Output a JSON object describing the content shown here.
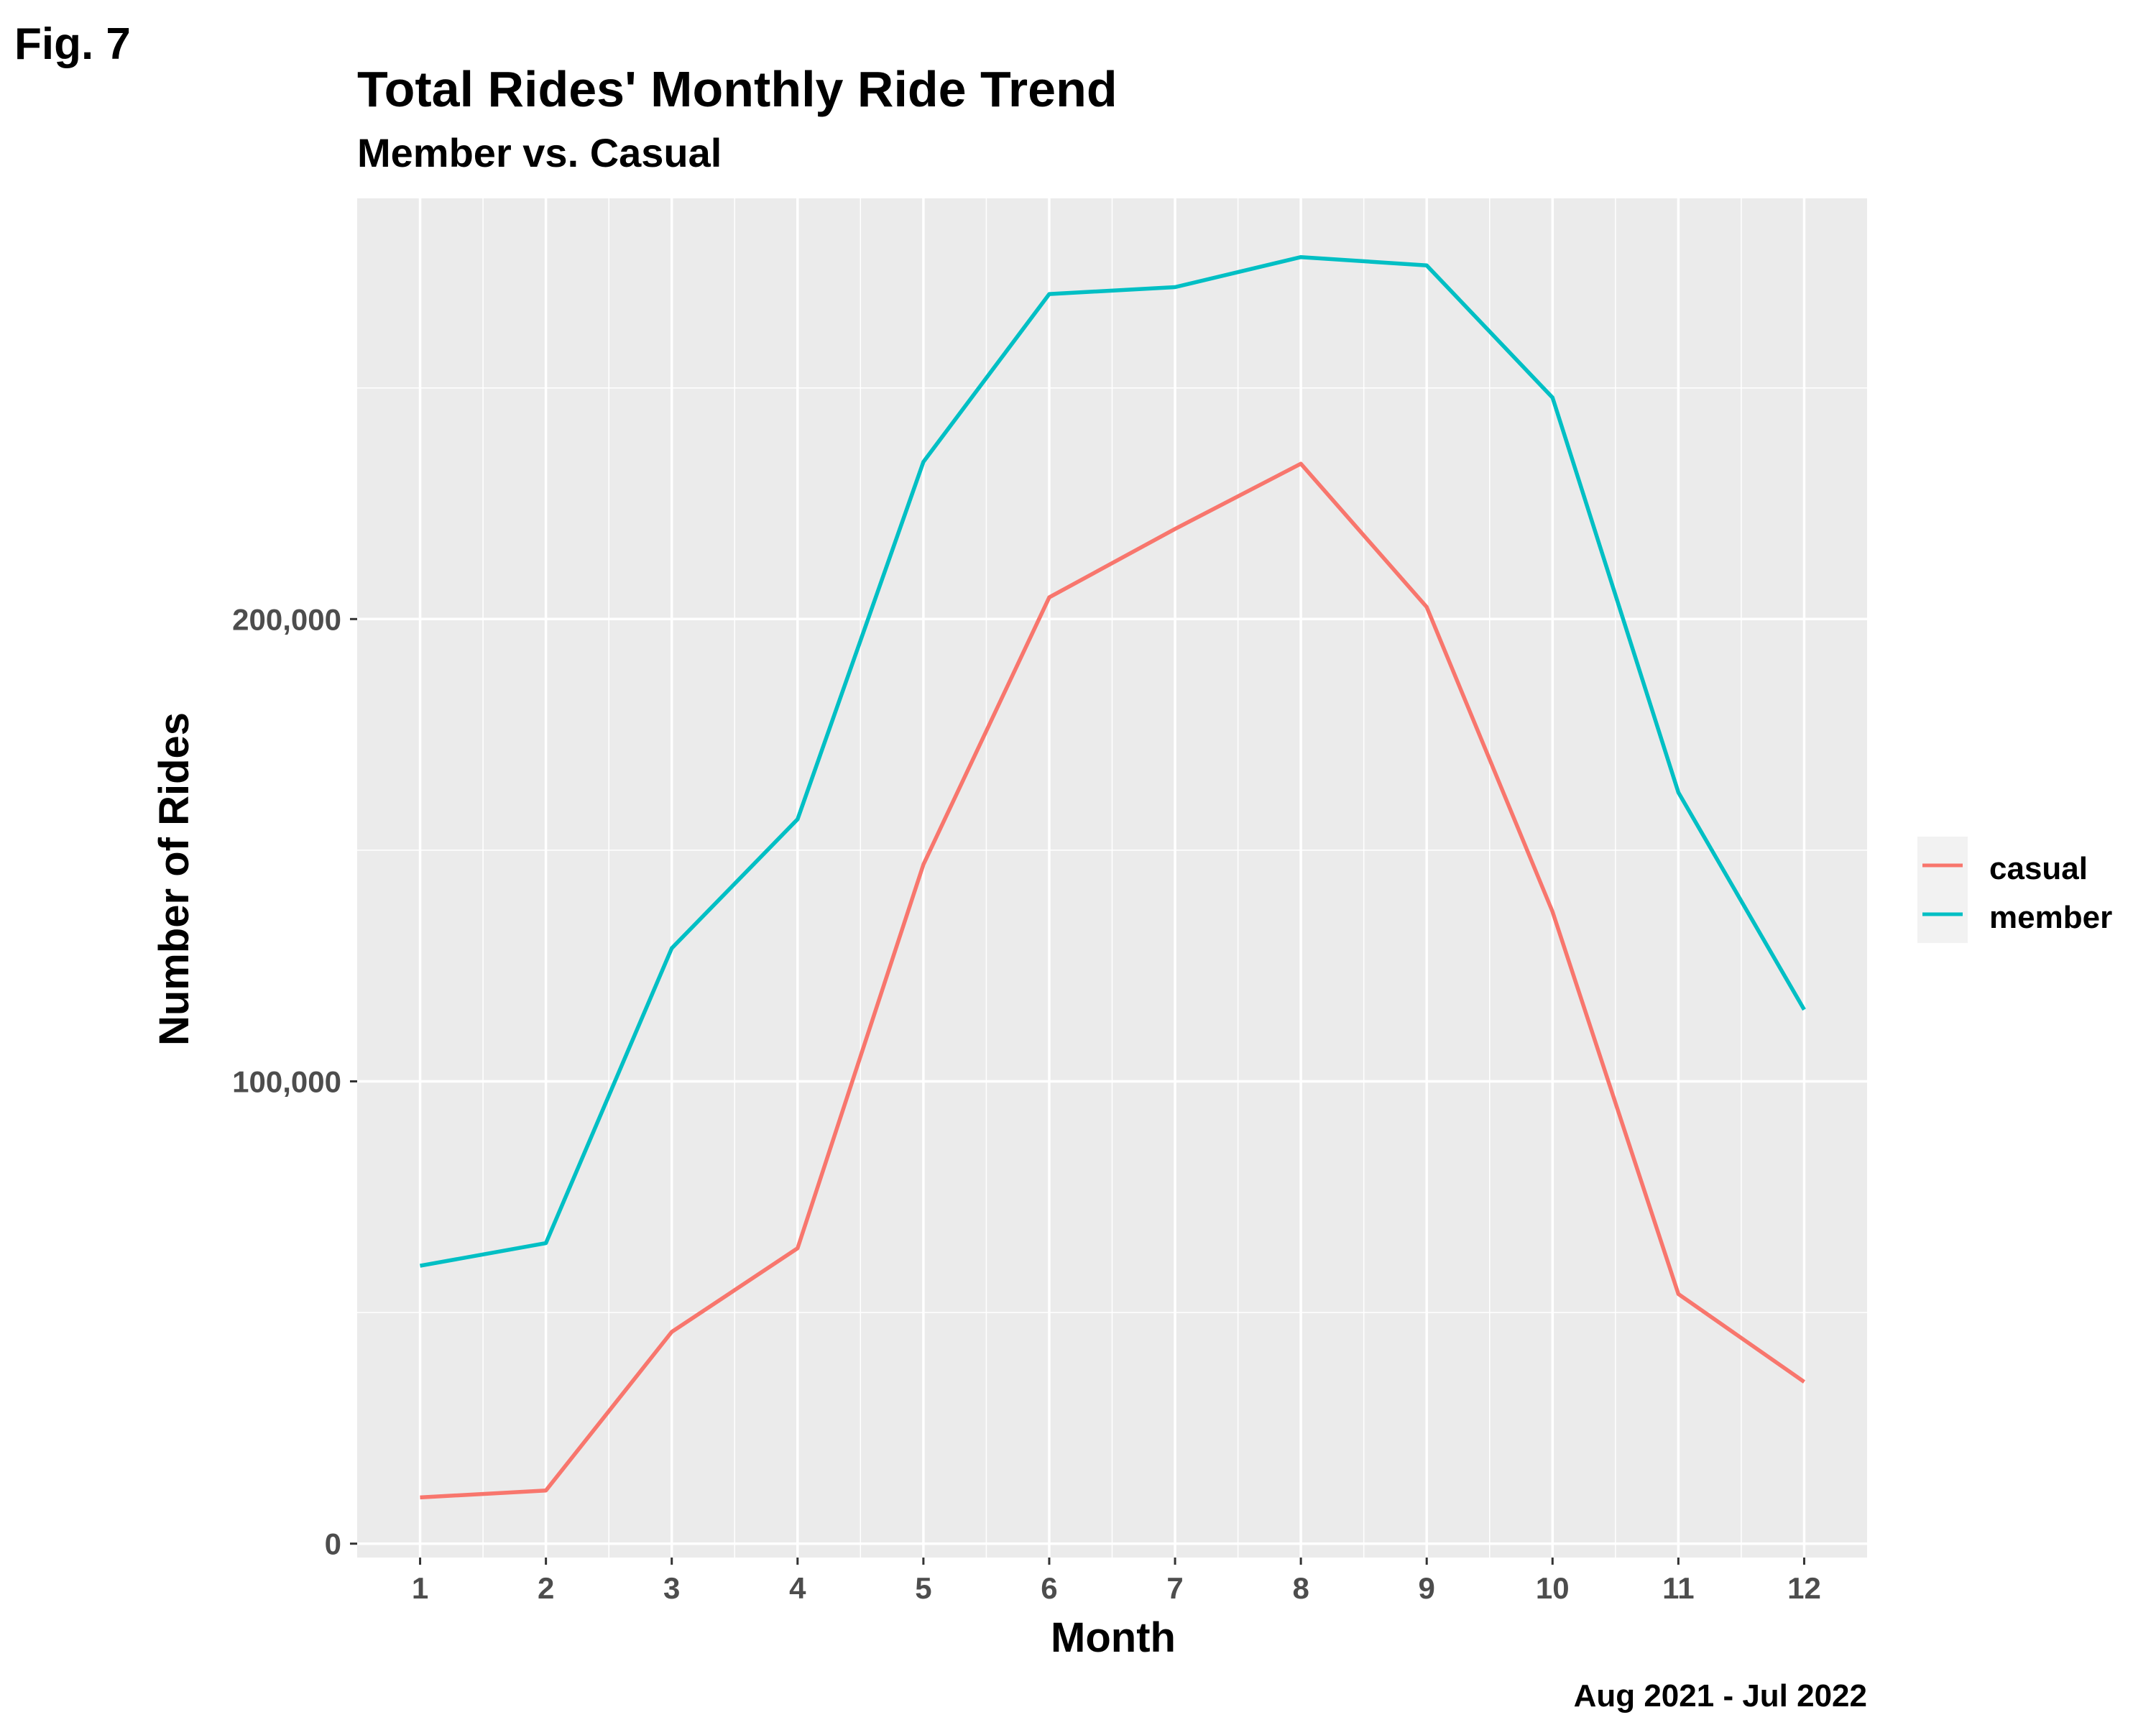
{
  "figure_label": "Fig. 7",
  "caption": "Aug 2021 - Jul 2022",
  "chart_data": {
    "type": "line",
    "title": "Total Rides' Monthly Ride Trend",
    "subtitle": "Member vs. Casual",
    "xlabel": "Month",
    "ylabel": "Number of Rides",
    "x": [
      1,
      2,
      3,
      4,
      5,
      6,
      7,
      8,
      9,
      10,
      11,
      12
    ],
    "x_tick_labels": [
      "1",
      "2",
      "3",
      "4",
      "5",
      "6",
      "7",
      "8",
      "9",
      "10",
      "11",
      "12"
    ],
    "xlim": [
      0.5,
      12.5
    ],
    "ylim": [
      -3000,
      291000
    ],
    "y_ticks": [
      0,
      100000,
      200000
    ],
    "y_tick_labels": [
      "0",
      "100,000",
      "200,000"
    ],
    "grid": true,
    "legend_position": "right",
    "series": [
      {
        "name": "casual",
        "color": "#F8766D",
        "values": [
          10000,
          11500,
          45800,
          63900,
          146900,
          204700,
          219500,
          233600,
          202600,
          136700,
          54000,
          35000
        ]
      },
      {
        "name": "member",
        "color": "#00BFC4",
        "values": [
          60100,
          65000,
          128800,
          156700,
          234000,
          270300,
          271800,
          278300,
          276500,
          247900,
          162500,
          115500
        ]
      }
    ],
    "background_color": "#EBEBEB",
    "grid_color": "#FFFFFF"
  }
}
